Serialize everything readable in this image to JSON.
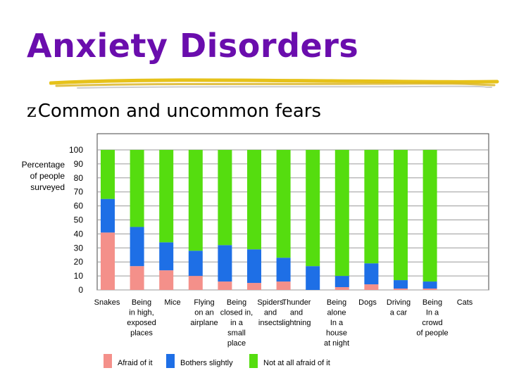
{
  "slide": {
    "title": "Anxiety Disorders",
    "bullet_glyph": "z",
    "bullet_text": "Common and uncommon fears",
    "title_color": "#6a0dad",
    "underline_color": "#e6c21a"
  },
  "chart_data": {
    "type": "bar",
    "stacked": true,
    "ylabel": "Percentage of people surveyed",
    "ylim": [
      0,
      100
    ],
    "y_ticks": [
      0,
      10,
      20,
      30,
      40,
      50,
      60,
      70,
      80,
      90,
      100
    ],
    "grid": true,
    "legend_position": "bottom",
    "categories": [
      "Snakes",
      "Being in high, exposed places",
      "Mice",
      "Flying on an airplane",
      "Being closed in, in a small place",
      "Spiders and insects",
      "Thunder and lightning",
      "Being alone in a house at night",
      "Dogs",
      "Driving a car",
      "Being in a crowd of people",
      "Cats"
    ],
    "category_label_lines": [
      [
        "Snakes"
      ],
      [
        "Being",
        "in high,",
        "exposed",
        "places"
      ],
      [
        "Mice"
      ],
      [
        "Flying",
        "on an",
        "airplane"
      ],
      [
        "Being",
        "closed in,",
        "in a",
        "small",
        "place"
      ],
      [
        "Spiders",
        "and",
        "insects"
      ],
      [
        "Thunder",
        "and",
        "lightning"
      ],
      [
        "Being",
        "alone",
        "In a",
        "house",
        "at night"
      ],
      [
        "Dogs"
      ],
      [
        "Driving",
        "a car"
      ],
      [
        "Being",
        "In a",
        "crowd",
        "of people"
      ],
      [
        "Cats"
      ]
    ],
    "series": [
      {
        "name": "Afraid of it",
        "color": "#f4908a",
        "values": [
          41,
          17,
          14,
          10,
          6,
          5,
          6,
          0,
          2,
          4,
          1,
          1
        ]
      },
      {
        "name": "Bothers slightly",
        "color": "#1e6fe6",
        "values": [
          24,
          28,
          20,
          18,
          26,
          24,
          17,
          17,
          8,
          15,
          6,
          5
        ]
      },
      {
        "name": "Not at all afraid of it",
        "color": "#55dd0f",
        "values": [
          35,
          55,
          66,
          72,
          68,
          71,
          77,
          83,
          90,
          81,
          93,
          94
        ]
      }
    ]
  }
}
